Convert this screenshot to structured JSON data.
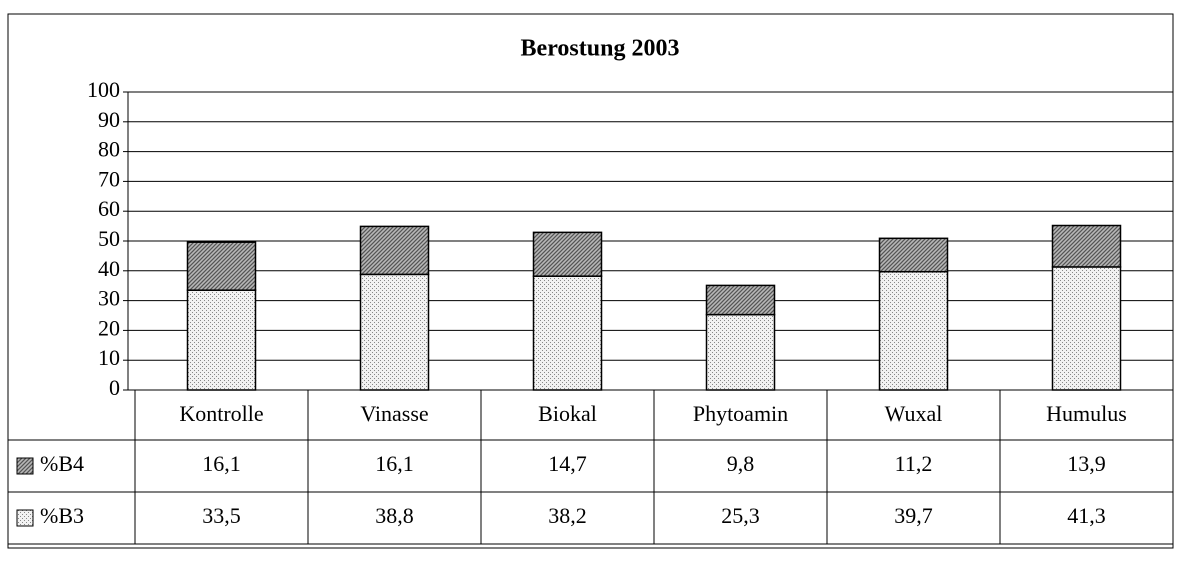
{
  "chart_data": {
    "type": "stacked_bar",
    "title": "Berostung 2003",
    "categories": [
      "Kontrolle",
      "Vinasse",
      "Biokal",
      "Phytoamin",
      "Wuxal",
      "Humulus"
    ],
    "series": [
      {
        "name": "%B3",
        "color": "#f2f2f2",
        "values": [
          33.5,
          38.8,
          38.2,
          25.3,
          39.7,
          41.3
        ],
        "value_labels": [
          "33,5",
          "38,8",
          "38,2",
          "25,3",
          "39,7",
          "41,3"
        ]
      },
      {
        "name": "%B4",
        "color": "#b8b8b8",
        "values": [
          16.1,
          16.1,
          14.7,
          9.8,
          11.2,
          13.9
        ],
        "value_labels": [
          "16,1",
          "16,1",
          "14,7",
          "9,8",
          "11,2",
          "13,9"
        ]
      }
    ],
    "ylim": [
      0,
      100
    ],
    "yticks": [
      0,
      10,
      20,
      30,
      40,
      50,
      60,
      70,
      80,
      90,
      100
    ],
    "grid": true
  }
}
